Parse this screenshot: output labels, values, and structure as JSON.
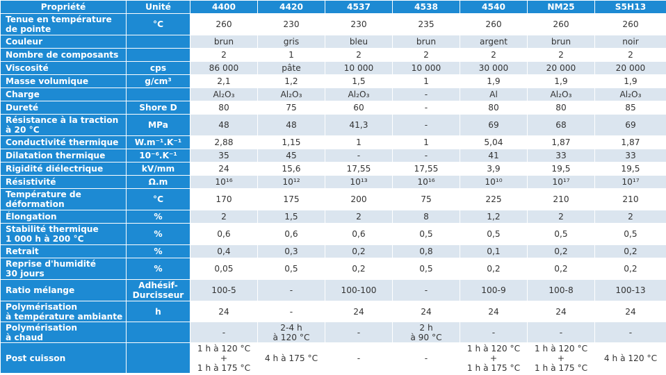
{
  "header": [
    "Propriété",
    "Unité",
    "4400",
    "4420",
    "4537",
    "4538",
    "4540",
    "NM25",
    "S5H13"
  ],
  "rows": [
    [
      "Tenue en température\nde pointe",
      "°C",
      "260",
      "230",
      "230",
      "235",
      "260",
      "260",
      "260"
    ],
    [
      "Couleur",
      "",
      "brun",
      "gris",
      "bleu",
      "brun",
      "argent",
      "brun",
      "noir"
    ],
    [
      "Nombre de composants",
      "",
      "2",
      "1",
      "2",
      "2",
      "2",
      "2",
      "2"
    ],
    [
      "Viscosité",
      "cps",
      "86 000",
      "pâte",
      "10 000",
      "10 000",
      "30 000",
      "20 000",
      "20 000"
    ],
    [
      "Masse volumique",
      "g/cm³",
      "2,1",
      "1,2",
      "1,5",
      "1",
      "1,9",
      "1,9",
      "1,9"
    ],
    [
      "Charge",
      "",
      "Al₂O₃",
      "Al₂O₃",
      "Al₂O₃",
      "-",
      "Al",
      "Al₂O₃",
      "Al₂O₃"
    ],
    [
      "Dureté",
      "Shore D",
      "80",
      "75",
      "60",
      "-",
      "80",
      "80",
      "85"
    ],
    [
      "Résistance à la traction\nà 20 °C",
      "MPa",
      "48",
      "48",
      "41,3",
      "-",
      "69",
      "68",
      "69"
    ],
    [
      "Conductivité thermique",
      "W.m⁻¹.K⁻¹",
      "2,88",
      "1,15",
      "1",
      "1",
      "5,04",
      "1,87",
      "1,87"
    ],
    [
      "Dilatation thermique",
      "10⁻⁶.K⁻¹",
      "35",
      "45",
      "-",
      "-",
      "41",
      "33",
      "33"
    ],
    [
      "Rigidité diélectrique",
      "kV/mm",
      "24",
      "15,6",
      "17,55",
      "17,55",
      "3,9",
      "19,5",
      "19,5"
    ],
    [
      "Résistivité",
      "Ω.m",
      "10¹⁶",
      "10¹²",
      "10¹³",
      "10¹⁶",
      "10¹⁰",
      "10¹⁷",
      "10¹⁷"
    ],
    [
      "Température de\ndéformation",
      "°C",
      "170",
      "175",
      "200",
      "75",
      "225",
      "210",
      "210"
    ],
    [
      "Élongation",
      "%",
      "2",
      "1,5",
      "2",
      "8",
      "1,2",
      "2",
      "2"
    ],
    [
      "Stabilité thermique\n1 000 h à 200 °C",
      "%",
      "0,6",
      "0,6",
      "0,6",
      "0,5",
      "0,5",
      "0,5",
      "0,5"
    ],
    [
      "Retrait",
      "%",
      "0,4",
      "0,3",
      "0,2",
      "0,8",
      "0,1",
      "0,2",
      "0,2"
    ],
    [
      "Reprise d'humidité\n30 jours",
      "%",
      "0,05",
      "0,5",
      "0,2",
      "0,5",
      "0,2",
      "0,2",
      "0,2"
    ],
    [
      "Ratio mélange",
      "Adhésif-\nDurcisseur",
      "100-5",
      "-",
      "100-100",
      "-",
      "100-9",
      "100-8",
      "100-13"
    ],
    [
      "Polymérisation\nà température ambiante",
      "h",
      "24",
      "-",
      "24",
      "24",
      "24",
      "24",
      "24"
    ],
    [
      "Polymérisation\nà chaud",
      "",
      "-",
      "2-4 h\nà 120 °C",
      "-",
      "2 h\nà 90 °C",
      "-",
      "-",
      "-"
    ],
    [
      "Post cuisson",
      "",
      "1 h à 120 °C\n+\n1 h à 175 °C",
      "4 h à 175 °C",
      "-",
      "-",
      "1 h à 120 °C\n+\n1 h à 175 °C",
      "1 h à 120 °C\n+\n1 h à 175 °C",
      "4 h à 120 °C"
    ]
  ]
}
